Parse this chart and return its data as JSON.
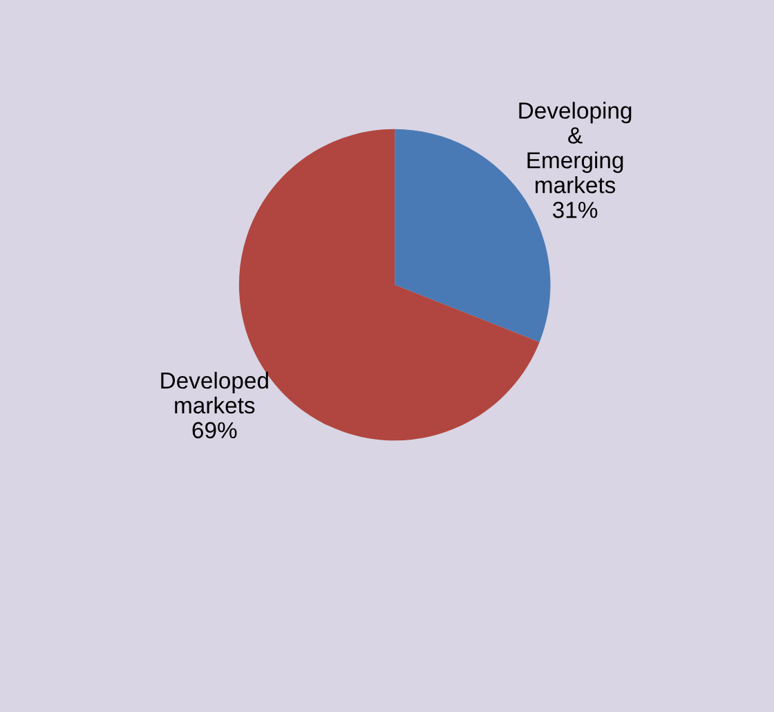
{
  "chart_data": {
    "type": "pie",
    "categories": [
      "Developing & Emerging markets",
      "Developed markets"
    ],
    "values": [
      31,
      69
    ],
    "value_labels": [
      "31%",
      "69%"
    ],
    "colors": [
      "#4a7ab5",
      "#b0463f"
    ],
    "legend": false
  }
}
